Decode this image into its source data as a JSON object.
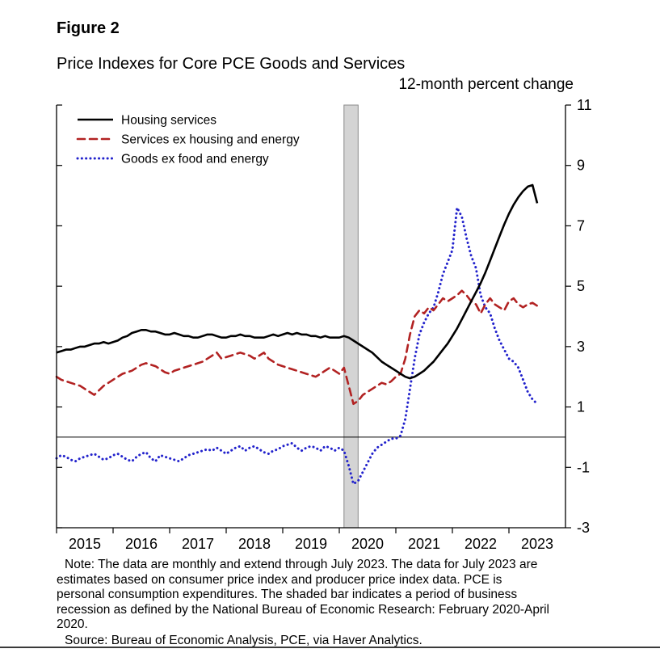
{
  "figure": {
    "label": "Figure 2",
    "title": "Price Indexes for Core PCE Goods and Services",
    "unit_label": "12-month percent change"
  },
  "chart_data": {
    "type": "line",
    "frequency": "monthly",
    "x_start": "2015-01",
    "x_end": "2023-07",
    "x_start_decimal": 2015.0,
    "x_step_years": 0.0833333,
    "x_domain": [
      2015.0,
      2024.0
    ],
    "ylim": [
      -3,
      11
    ],
    "yticks": [
      -3,
      -1,
      1,
      3,
      5,
      7,
      9,
      11
    ],
    "xticks": [
      2015,
      2016,
      2017,
      2018,
      2019,
      2020,
      2021,
      2022,
      2023
    ],
    "zero_line": true,
    "legend_position": "top-left",
    "recession_band": {
      "start": 2020.083,
      "end": 2020.333,
      "label": "February 2020-April 2020",
      "fill": "#d4d4d4"
    },
    "series": [
      {
        "id": "housing-services",
        "name": "Housing services",
        "color": "#000000",
        "style": "solid",
        "values": [
          2.8,
          2.85,
          2.9,
          2.9,
          2.95,
          3.0,
          3.0,
          3.05,
          3.1,
          3.1,
          3.15,
          3.1,
          3.15,
          3.2,
          3.3,
          3.35,
          3.45,
          3.5,
          3.55,
          3.55,
          3.5,
          3.5,
          3.45,
          3.4,
          3.4,
          3.45,
          3.4,
          3.35,
          3.35,
          3.3,
          3.3,
          3.35,
          3.4,
          3.4,
          3.35,
          3.3,
          3.3,
          3.35,
          3.35,
          3.4,
          3.35,
          3.35,
          3.3,
          3.3,
          3.3,
          3.35,
          3.4,
          3.35,
          3.4,
          3.45,
          3.4,
          3.45,
          3.4,
          3.4,
          3.35,
          3.35,
          3.3,
          3.35,
          3.3,
          3.3,
          3.3,
          3.35,
          3.3,
          3.2,
          3.1,
          3.0,
          2.9,
          2.8,
          2.65,
          2.5,
          2.4,
          2.3,
          2.2,
          2.1,
          2.0,
          1.95,
          2.0,
          2.1,
          2.2,
          2.35,
          2.5,
          2.7,
          2.9,
          3.1,
          3.35,
          3.6,
          3.9,
          4.2,
          4.5,
          4.8,
          5.1,
          5.45,
          5.85,
          6.25,
          6.65,
          7.05,
          7.4,
          7.7,
          7.95,
          8.15,
          8.3,
          8.35,
          7.75
        ]
      },
      {
        "id": "services-ex-housing-energy",
        "name": "Services ex housing and energy",
        "color": "#b22222",
        "style": "dashed",
        "values": [
          2.0,
          1.9,
          1.85,
          1.8,
          1.75,
          1.7,
          1.6,
          1.5,
          1.4,
          1.55,
          1.7,
          1.8,
          1.9,
          2.0,
          2.1,
          2.15,
          2.2,
          2.3,
          2.4,
          2.45,
          2.4,
          2.35,
          2.25,
          2.15,
          2.1,
          2.2,
          2.25,
          2.3,
          2.35,
          2.4,
          2.45,
          2.5,
          2.6,
          2.7,
          2.8,
          2.6,
          2.65,
          2.7,
          2.75,
          2.8,
          2.75,
          2.7,
          2.6,
          2.7,
          2.8,
          2.6,
          2.5,
          2.4,
          2.35,
          2.3,
          2.25,
          2.2,
          2.15,
          2.1,
          2.05,
          2.0,
          2.1,
          2.2,
          2.3,
          2.2,
          2.1,
          2.3,
          1.7,
          1.1,
          1.2,
          1.4,
          1.5,
          1.6,
          1.7,
          1.8,
          1.75,
          1.85,
          2.0,
          2.1,
          2.6,
          3.4,
          4.0,
          4.2,
          4.1,
          4.3,
          4.2,
          4.4,
          4.6,
          4.5,
          4.6,
          4.7,
          4.85,
          4.7,
          4.5,
          4.4,
          4.1,
          4.4,
          4.6,
          4.4,
          4.3,
          4.2,
          4.5,
          4.6,
          4.4,
          4.3,
          4.4,
          4.45,
          4.35
        ]
      },
      {
        "id": "goods-ex-food-energy",
        "name": "Goods ex food and energy",
        "color": "#2222cc",
        "style": "dotted",
        "values": [
          -0.7,
          -0.6,
          -0.65,
          -0.75,
          -0.8,
          -0.7,
          -0.65,
          -0.6,
          -0.55,
          -0.65,
          -0.75,
          -0.7,
          -0.6,
          -0.55,
          -0.65,
          -0.75,
          -0.8,
          -0.65,
          -0.55,
          -0.5,
          -0.7,
          -0.8,
          -0.6,
          -0.65,
          -0.7,
          -0.75,
          -0.8,
          -0.7,
          -0.6,
          -0.55,
          -0.5,
          -0.45,
          -0.4,
          -0.45,
          -0.35,
          -0.45,
          -0.55,
          -0.45,
          -0.35,
          -0.3,
          -0.45,
          -0.35,
          -0.3,
          -0.4,
          -0.5,
          -0.55,
          -0.45,
          -0.4,
          -0.3,
          -0.25,
          -0.2,
          -0.35,
          -0.45,
          -0.35,
          -0.3,
          -0.35,
          -0.45,
          -0.3,
          -0.35,
          -0.45,
          -0.35,
          -0.45,
          -0.95,
          -1.55,
          -1.45,
          -1.15,
          -0.85,
          -0.55,
          -0.35,
          -0.25,
          -0.15,
          -0.05,
          -0.05,
          0.05,
          0.6,
          1.6,
          2.6,
          3.4,
          3.8,
          4.1,
          4.3,
          4.8,
          5.4,
          5.8,
          6.2,
          7.6,
          7.3,
          6.6,
          6.0,
          5.6,
          4.7,
          4.3,
          4.1,
          3.6,
          3.2,
          2.9,
          2.6,
          2.5,
          2.3,
          1.9,
          1.5,
          1.25,
          1.1
        ]
      }
    ]
  },
  "notes": {
    "note": "Note: The data are monthly and extend through July 2023. The data for July 2023 are estimates based on consumer price index and producer price index data. PCE is personal consumption expenditures. The shaded bar indicates a period of business recession as defined by the National Bureau of Economic Research: February 2020-April 2020.",
    "source": "Source: Bureau of Economic Analysis, PCE, via Haver Analytics."
  }
}
